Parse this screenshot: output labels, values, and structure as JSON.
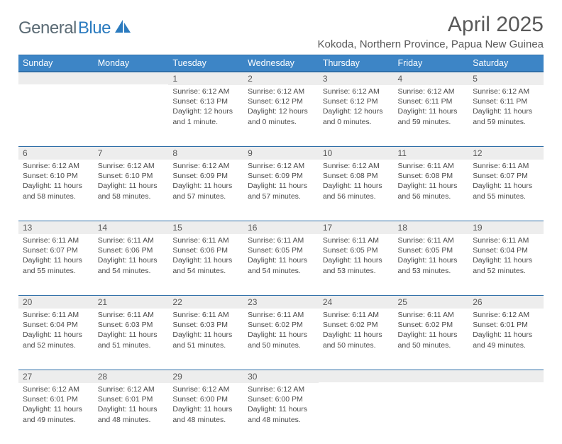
{
  "logo": {
    "grey": "General",
    "blue": "Blue"
  },
  "title": "April 2025",
  "location": "Kokoda, Northern Province, Papua New Guinea",
  "colors": {
    "header_bg": "#3d85c6",
    "header_border": "#2f6fa8",
    "daynum_bg": "#ededed",
    "text_grey": "#595959",
    "logo_grey": "#5a6a74",
    "logo_blue": "#2b7bbf"
  },
  "weekdays": [
    "Sunday",
    "Monday",
    "Tuesday",
    "Wednesday",
    "Thursday",
    "Friday",
    "Saturday"
  ],
  "weeks": [
    [
      null,
      null,
      {
        "n": "1",
        "sr": "Sunrise: 6:12 AM",
        "ss": "Sunset: 6:13 PM",
        "d1": "Daylight: 12 hours",
        "d2": "and 1 minute."
      },
      {
        "n": "2",
        "sr": "Sunrise: 6:12 AM",
        "ss": "Sunset: 6:12 PM",
        "d1": "Daylight: 12 hours",
        "d2": "and 0 minutes."
      },
      {
        "n": "3",
        "sr": "Sunrise: 6:12 AM",
        "ss": "Sunset: 6:12 PM",
        "d1": "Daylight: 12 hours",
        "d2": "and 0 minutes."
      },
      {
        "n": "4",
        "sr": "Sunrise: 6:12 AM",
        "ss": "Sunset: 6:11 PM",
        "d1": "Daylight: 11 hours",
        "d2": "and 59 minutes."
      },
      {
        "n": "5",
        "sr": "Sunrise: 6:12 AM",
        "ss": "Sunset: 6:11 PM",
        "d1": "Daylight: 11 hours",
        "d2": "and 59 minutes."
      }
    ],
    [
      {
        "n": "6",
        "sr": "Sunrise: 6:12 AM",
        "ss": "Sunset: 6:10 PM",
        "d1": "Daylight: 11 hours",
        "d2": "and 58 minutes."
      },
      {
        "n": "7",
        "sr": "Sunrise: 6:12 AM",
        "ss": "Sunset: 6:10 PM",
        "d1": "Daylight: 11 hours",
        "d2": "and 58 minutes."
      },
      {
        "n": "8",
        "sr": "Sunrise: 6:12 AM",
        "ss": "Sunset: 6:09 PM",
        "d1": "Daylight: 11 hours",
        "d2": "and 57 minutes."
      },
      {
        "n": "9",
        "sr": "Sunrise: 6:12 AM",
        "ss": "Sunset: 6:09 PM",
        "d1": "Daylight: 11 hours",
        "d2": "and 57 minutes."
      },
      {
        "n": "10",
        "sr": "Sunrise: 6:12 AM",
        "ss": "Sunset: 6:08 PM",
        "d1": "Daylight: 11 hours",
        "d2": "and 56 minutes."
      },
      {
        "n": "11",
        "sr": "Sunrise: 6:11 AM",
        "ss": "Sunset: 6:08 PM",
        "d1": "Daylight: 11 hours",
        "d2": "and 56 minutes."
      },
      {
        "n": "12",
        "sr": "Sunrise: 6:11 AM",
        "ss": "Sunset: 6:07 PM",
        "d1": "Daylight: 11 hours",
        "d2": "and 55 minutes."
      }
    ],
    [
      {
        "n": "13",
        "sr": "Sunrise: 6:11 AM",
        "ss": "Sunset: 6:07 PM",
        "d1": "Daylight: 11 hours",
        "d2": "and 55 minutes."
      },
      {
        "n": "14",
        "sr": "Sunrise: 6:11 AM",
        "ss": "Sunset: 6:06 PM",
        "d1": "Daylight: 11 hours",
        "d2": "and 54 minutes."
      },
      {
        "n": "15",
        "sr": "Sunrise: 6:11 AM",
        "ss": "Sunset: 6:06 PM",
        "d1": "Daylight: 11 hours",
        "d2": "and 54 minutes."
      },
      {
        "n": "16",
        "sr": "Sunrise: 6:11 AM",
        "ss": "Sunset: 6:05 PM",
        "d1": "Daylight: 11 hours",
        "d2": "and 54 minutes."
      },
      {
        "n": "17",
        "sr": "Sunrise: 6:11 AM",
        "ss": "Sunset: 6:05 PM",
        "d1": "Daylight: 11 hours",
        "d2": "and 53 minutes."
      },
      {
        "n": "18",
        "sr": "Sunrise: 6:11 AM",
        "ss": "Sunset: 6:05 PM",
        "d1": "Daylight: 11 hours",
        "d2": "and 53 minutes."
      },
      {
        "n": "19",
        "sr": "Sunrise: 6:11 AM",
        "ss": "Sunset: 6:04 PM",
        "d1": "Daylight: 11 hours",
        "d2": "and 52 minutes."
      }
    ],
    [
      {
        "n": "20",
        "sr": "Sunrise: 6:11 AM",
        "ss": "Sunset: 6:04 PM",
        "d1": "Daylight: 11 hours",
        "d2": "and 52 minutes."
      },
      {
        "n": "21",
        "sr": "Sunrise: 6:11 AM",
        "ss": "Sunset: 6:03 PM",
        "d1": "Daylight: 11 hours",
        "d2": "and 51 minutes."
      },
      {
        "n": "22",
        "sr": "Sunrise: 6:11 AM",
        "ss": "Sunset: 6:03 PM",
        "d1": "Daylight: 11 hours",
        "d2": "and 51 minutes."
      },
      {
        "n": "23",
        "sr": "Sunrise: 6:11 AM",
        "ss": "Sunset: 6:02 PM",
        "d1": "Daylight: 11 hours",
        "d2": "and 50 minutes."
      },
      {
        "n": "24",
        "sr": "Sunrise: 6:11 AM",
        "ss": "Sunset: 6:02 PM",
        "d1": "Daylight: 11 hours",
        "d2": "and 50 minutes."
      },
      {
        "n": "25",
        "sr": "Sunrise: 6:11 AM",
        "ss": "Sunset: 6:02 PM",
        "d1": "Daylight: 11 hours",
        "d2": "and 50 minutes."
      },
      {
        "n": "26",
        "sr": "Sunrise: 6:12 AM",
        "ss": "Sunset: 6:01 PM",
        "d1": "Daylight: 11 hours",
        "d2": "and 49 minutes."
      }
    ],
    [
      {
        "n": "27",
        "sr": "Sunrise: 6:12 AM",
        "ss": "Sunset: 6:01 PM",
        "d1": "Daylight: 11 hours",
        "d2": "and 49 minutes."
      },
      {
        "n": "28",
        "sr": "Sunrise: 6:12 AM",
        "ss": "Sunset: 6:01 PM",
        "d1": "Daylight: 11 hours",
        "d2": "and 48 minutes."
      },
      {
        "n": "29",
        "sr": "Sunrise: 6:12 AM",
        "ss": "Sunset: 6:00 PM",
        "d1": "Daylight: 11 hours",
        "d2": "and 48 minutes."
      },
      {
        "n": "30",
        "sr": "Sunrise: 6:12 AM",
        "ss": "Sunset: 6:00 PM",
        "d1": "Daylight: 11 hours",
        "d2": "and 48 minutes."
      },
      null,
      null,
      null
    ]
  ]
}
